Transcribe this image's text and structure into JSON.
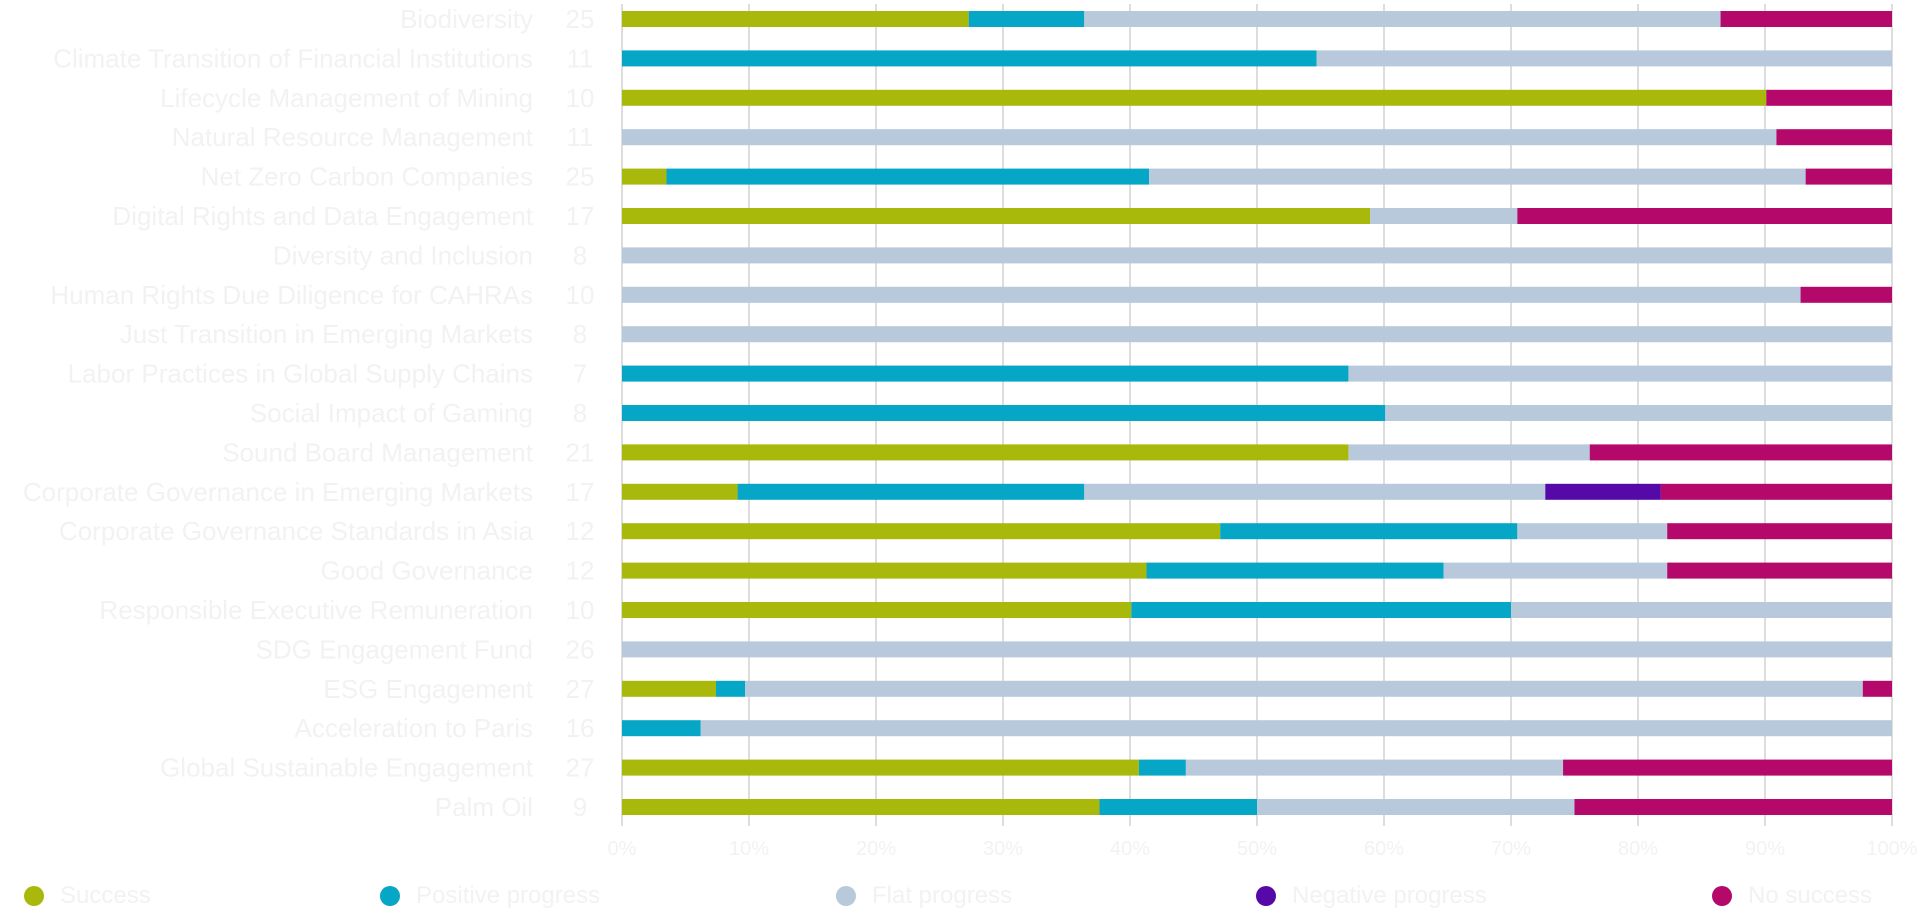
{
  "chart_data": {
    "type": "bar",
    "orientation": "horizontal",
    "stacked": "percent",
    "title": "",
    "xlabel": "",
    "ylabel": "",
    "xlim": [
      0,
      100
    ],
    "grid": true,
    "legend_position": "bottom",
    "x_tick_labels": [
      "0%",
      "10%",
      "20%",
      "30%",
      "40%",
      "50%",
      "60%",
      "70%",
      "80%",
      "90%",
      "100%"
    ],
    "categories": [
      "Biodiversity",
      "Climate Transition of Financial Institutions",
      "Lifecycle Management of Mining",
      "Natural Resource Management",
      "Net Zero Carbon Companies",
      "Digital Rights and Data Engagement",
      "Diversity and Inclusion",
      "Human Rights Due Diligence for CAHRAs",
      "Just Transition in Emerging Markets",
      "Labor Practices in Global Supply Chains",
      "Social Impact of Gaming",
      "Sound Board Management",
      "Corporate Governance in Emerging Markets",
      "Corporate Governance Standards in Asia",
      "Good Governance",
      "Responsible Executive Remuneration",
      "SDG Engagement Fund",
      "ESG Engagement",
      "Acceleration to Paris",
      "Global Sustainable Engagement",
      "Palm Oil"
    ],
    "counts": [
      "25",
      "11",
      "10",
      "11",
      "25",
      "17",
      "8",
      "10",
      "8",
      "7",
      "8",
      "21",
      "17",
      "12",
      "12",
      "10",
      "26",
      "27",
      "16",
      "27",
      "9"
    ],
    "series": [
      {
        "name": "Success",
        "color": "#a8b90c",
        "values": [
          27.3,
          0,
          90.1,
          0,
          3.5,
          58.9,
          0,
          0,
          0,
          0,
          0,
          57.2,
          9.1,
          47.1,
          41.3,
          40.1,
          0,
          7.4,
          0,
          40.7,
          37.6
        ]
      },
      {
        "name": "Positive progress",
        "color": "#06a6c6",
        "values": [
          9.1,
          54.7,
          0,
          0,
          38.0,
          0,
          0,
          0,
          0,
          57.2,
          60.1,
          0,
          27.3,
          23.4,
          23.4,
          29.9,
          0,
          2.3,
          6.2,
          3.7,
          12.4
        ]
      },
      {
        "name": "Flat progress",
        "color": "#b7c9db",
        "values": [
          50.1,
          45.3,
          0,
          90.9,
          51.7,
          11.6,
          100,
          92.8,
          100,
          42.8,
          39.9,
          19.0,
          36.3,
          11.8,
          17.6,
          30.0,
          100,
          88.0,
          93.8,
          29.7,
          25.0
        ]
      },
      {
        "name": "Negative progress",
        "color": "#5409a8",
        "values": [
          0,
          0,
          0,
          0,
          0,
          0,
          0,
          0,
          0,
          0,
          0,
          0,
          9.1,
          0,
          0,
          0,
          0,
          0,
          0,
          0,
          0
        ]
      },
      {
        "name": "No success",
        "color": "#b4086a",
        "values": [
          13.5,
          0,
          9.9,
          9.1,
          6.8,
          29.5,
          0,
          7.2,
          0,
          0,
          0,
          23.8,
          18.2,
          17.7,
          17.7,
          0,
          0,
          2.3,
          0,
          25.9,
          25.0
        ]
      }
    ]
  },
  "colors": {
    "background": "#ffffff",
    "text": "#f2f2f2",
    "grid": "#dddddd",
    "axis": "#dddddd"
  },
  "legend": {
    "items": [
      {
        "label": "Success",
        "color": "#a8b90c"
      },
      {
        "label": "Positive progress",
        "color": "#06a6c6"
      },
      {
        "label": "Flat progress",
        "color": "#b7c9db"
      },
      {
        "label": "Negative progress",
        "color": "#5409a8"
      },
      {
        "label": "No success",
        "color": "#b4086a"
      }
    ]
  }
}
